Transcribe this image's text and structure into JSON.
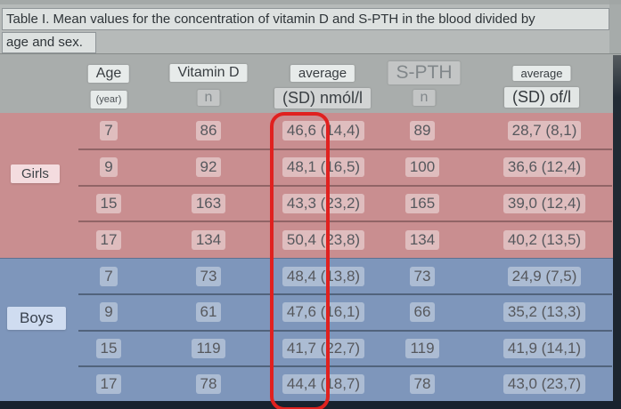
{
  "title": {
    "line1": "Table I. Mean values for the concentration of vitamin D and S-PTH in the blood divided by",
    "line2": "age and sex."
  },
  "header": {
    "age_top": "Age",
    "age_bottom": "(year)",
    "vitamin_d_top": "Vitamin D",
    "vitamin_d_bottom": "n",
    "vitd_average_top": "average",
    "vitd_average_bottom": "(SD) nmól/l",
    "spth_top": "S-PTH",
    "spth_bottom": "n",
    "spth_average_top": "average",
    "spth_average_bottom": "(SD) of/l"
  },
  "groups": {
    "girls": {
      "label": "Girls",
      "rows": [
        {
          "age": "7",
          "vitd_n": "86",
          "vitd_avg": "46,6 (14,4)",
          "spth_n": "89",
          "spth_avg": "28,7 (8,1)"
        },
        {
          "age": "9",
          "vitd_n": "92",
          "vitd_avg": "48,1 (16,5)",
          "spth_n": "100",
          "spth_avg": "36,6 (12,4)"
        },
        {
          "age": "15",
          "vitd_n": "163",
          "vitd_avg": "43,3 (23,2)",
          "spth_n": "165",
          "spth_avg": "39,0 (12,4)"
        },
        {
          "age": "17",
          "vitd_n": "134",
          "vitd_avg": "50,4 (23,8)",
          "spth_n": "134",
          "spth_avg": "40,2 (13,5)"
        }
      ]
    },
    "boys": {
      "label": "Boys",
      "rows": [
        {
          "age": "7",
          "vitd_n": "73",
          "vitd_avg": "48,4 (13,8)",
          "spth_n": "73",
          "spth_avg": "24,9 (7,5)"
        },
        {
          "age": "9",
          "vitd_n": "61",
          "vitd_avg": "47,6 (16,1)",
          "spth_n": "66",
          "spth_avg": "35,2 (13,3)"
        },
        {
          "age": "15",
          "vitd_n": "119",
          "vitd_avg": "41,7 (22,7)",
          "spth_n": "119",
          "spth_avg": "41,9 (14,1)"
        },
        {
          "age": "17",
          "vitd_n": "78",
          "vitd_avg": "44,4 (18,7)",
          "spth_n": "78",
          "spth_avg": "43,0 (23,7)"
        }
      ]
    }
  },
  "annotation": {
    "red_box_column": "vitamin-d-average-values",
    "red_box_color": "#e0211f"
  },
  "colors": {
    "girls_section": "#c98e90",
    "boys_section": "#7e96bb",
    "header_band": "#a9adac",
    "title_area": "#b6bab9",
    "bottom_bar": "#18222e"
  }
}
